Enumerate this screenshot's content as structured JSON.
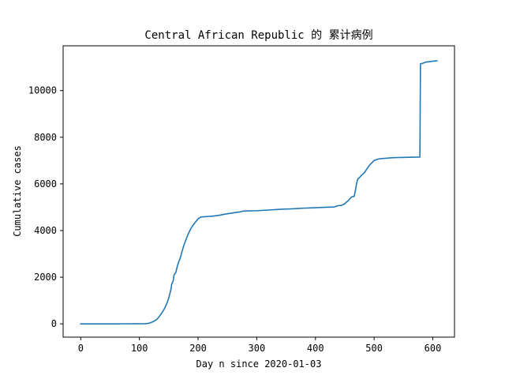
{
  "chart_data": {
    "type": "line",
    "title": "Central African Republic 的 累计病例",
    "xlabel": "Day n since 2020-01-03",
    "ylabel": "Cumulative cases",
    "xlim": [
      -30,
      637
    ],
    "ylim": [
      -570,
      11920
    ],
    "xticks": [
      0,
      100,
      200,
      300,
      400,
      500,
      600
    ],
    "yticks": [
      0,
      2000,
      4000,
      6000,
      8000,
      10000
    ],
    "grid": false,
    "series": [
      {
        "color": "#1f77b4",
        "points": [
          [
            0,
            0
          ],
          [
            60,
            0
          ],
          [
            70,
            1
          ],
          [
            90,
            3
          ],
          [
            110,
            8
          ],
          [
            115,
            20
          ],
          [
            118,
            40
          ],
          [
            122,
            80
          ],
          [
            125,
            120
          ],
          [
            128,
            160
          ],
          [
            130,
            200
          ],
          [
            132,
            260
          ],
          [
            134,
            320
          ],
          [
            136,
            390
          ],
          [
            138,
            460
          ],
          [
            140,
            540
          ],
          [
            142,
            620
          ],
          [
            144,
            720
          ],
          [
            146,
            830
          ],
          [
            148,
            960
          ],
          [
            150,
            1110
          ],
          [
            152,
            1300
          ],
          [
            153,
            1400
          ],
          [
            154,
            1500
          ],
          [
            155,
            1700
          ],
          [
            157,
            1800
          ],
          [
            158,
            1900
          ],
          [
            159,
            2100
          ],
          [
            162,
            2200
          ],
          [
            165,
            2500
          ],
          [
            167,
            2650
          ],
          [
            170,
            2850
          ],
          [
            172,
            3050
          ],
          [
            175,
            3300
          ],
          [
            177,
            3450
          ],
          [
            180,
            3650
          ],
          [
            182,
            3780
          ],
          [
            185,
            3950
          ],
          [
            188,
            4100
          ],
          [
            192,
            4250
          ],
          [
            196,
            4380
          ],
          [
            200,
            4500
          ],
          [
            205,
            4580
          ],
          [
            215,
            4600
          ],
          [
            225,
            4620
          ],
          [
            235,
            4650
          ],
          [
            245,
            4700
          ],
          [
            260,
            4760
          ],
          [
            272,
            4800
          ],
          [
            276,
            4830
          ],
          [
            280,
            4840
          ],
          [
            300,
            4850
          ],
          [
            320,
            4880
          ],
          [
            340,
            4910
          ],
          [
            360,
            4930
          ],
          [
            380,
            4960
          ],
          [
            400,
            4980
          ],
          [
            420,
            5000
          ],
          [
            432,
            5010
          ],
          [
            436,
            5050
          ],
          [
            440,
            5070
          ],
          [
            445,
            5080
          ],
          [
            450,
            5150
          ],
          [
            452,
            5200
          ],
          [
            456,
            5280
          ],
          [
            460,
            5400
          ],
          [
            462,
            5450
          ],
          [
            466,
            5460
          ],
          [
            468,
            5700
          ],
          [
            470,
            6000
          ],
          [
            472,
            6200
          ],
          [
            476,
            6300
          ],
          [
            480,
            6400
          ],
          [
            484,
            6500
          ],
          [
            488,
            6650
          ],
          [
            492,
            6800
          ],
          [
            496,
            6900
          ],
          [
            500,
            7000
          ],
          [
            505,
            7050
          ],
          [
            510,
            7080
          ],
          [
            520,
            7100
          ],
          [
            530,
            7120
          ],
          [
            540,
            7130
          ],
          [
            560,
            7140
          ],
          [
            578,
            7150
          ],
          [
            579,
            11150
          ],
          [
            583,
            11170
          ],
          [
            588,
            11220
          ],
          [
            595,
            11240
          ],
          [
            600,
            11260
          ],
          [
            607,
            11280
          ]
        ]
      }
    ]
  }
}
